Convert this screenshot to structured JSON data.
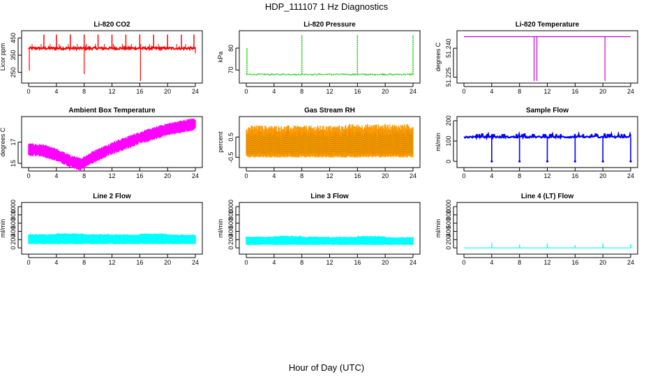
{
  "title": "HDP_111107  1 Hz Diagnostics",
  "xlabel": "Hour of Day (UTC)",
  "chart_data": [
    {
      "type": "line",
      "title": "Li-820 CO2",
      "ylabel": "Licor ppm",
      "color": "#ff0000",
      "x_ticks": [
        0,
        4,
        8,
        12,
        16,
        20,
        24
      ],
      "xlim": [
        0,
        24
      ],
      "ylim": [
        200,
        480
      ],
      "y_ticks": [
        250,
        350,
        450
      ],
      "baseline": 390,
      "spikes": [
        {
          "x": 2.2,
          "y": 470
        },
        {
          "x": 4.0,
          "y": 470
        },
        {
          "x": 6.0,
          "y": 470
        },
        {
          "x": 8.0,
          "y": 470
        },
        {
          "x": 10.0,
          "y": 470
        },
        {
          "x": 12.0,
          "y": 470
        },
        {
          "x": 14.0,
          "y": 470
        },
        {
          "x": 16.0,
          "y": 470
        },
        {
          "x": 18.0,
          "y": 470
        },
        {
          "x": 20.0,
          "y": 470
        },
        {
          "x": 22.0,
          "y": 470
        },
        {
          "x": 23.8,
          "y": 470
        }
      ],
      "dips": [
        {
          "x": 0.1,
          "y": 260
        },
        {
          "x": 8.0,
          "y": 240
        },
        {
          "x": 16.1,
          "y": 200
        },
        {
          "x": 24.0,
          "y": 360
        }
      ]
    },
    {
      "type": "line",
      "title": "Li-820 Pressure",
      "ylabel": "kPa",
      "color": "#00cc00",
      "x_ticks": [
        0,
        4,
        8,
        12,
        16,
        20,
        24
      ],
      "xlim": [
        0,
        24
      ],
      "ylim": [
        65,
        87
      ],
      "y_ticks": [
        70,
        80
      ],
      "baseline": 68,
      "spikes": [
        {
          "x": 0.1,
          "y": 80
        },
        {
          "x": 8.0,
          "y": 86
        },
        {
          "x": 16.0,
          "y": 86
        },
        {
          "x": 24.0,
          "y": 86
        }
      ]
    },
    {
      "type": "line",
      "title": "Li-820 Temperature",
      "ylabel": "degrees C",
      "color": "#cc00cc",
      "x_ticks": [
        0,
        4,
        8,
        12,
        16,
        20,
        24
      ],
      "xlim": [
        0,
        24
      ],
      "ylim": [
        51.223,
        51.248
      ],
      "y_ticks": [
        51.225,
        51.24
      ],
      "y_tick_labels": [
        "51.225",
        "51.240"
      ],
      "baseline": 51.246,
      "dips": [
        {
          "x": 10.1,
          "y": 51.223
        },
        {
          "x": 10.5,
          "y": 51.223
        },
        {
          "x": 20.3,
          "y": 51.223
        }
      ]
    },
    {
      "type": "line",
      "title": "Ambient Box Temperature",
      "ylabel": "degrees C",
      "color": "#ff00ff",
      "x_ticks": [
        0,
        4,
        8,
        12,
        16,
        20,
        24
      ],
      "xlim": [
        0,
        24
      ],
      "ylim": [
        14.8,
        19.2
      ],
      "y_ticks": [
        15,
        17
      ],
      "x": [
        0,
        2,
        4,
        6,
        7.5,
        9,
        12,
        16,
        20,
        24
      ],
      "y": [
        16.3,
        16.2,
        15.8,
        15.2,
        14.9,
        15.5,
        16.4,
        17.4,
        18.2,
        18.7
      ],
      "band": 0.55
    },
    {
      "type": "line",
      "title": "Gas Stream RH",
      "ylabel": "percent",
      "color": "#ff9900",
      "color2": "#666600",
      "x_ticks": [
        0,
        4,
        8,
        12,
        16,
        20,
        24
      ],
      "xlim": [
        0,
        24
      ],
      "ylim": [
        -0.9,
        1.4
      ],
      "y_ticks": [
        -0.5,
        0.5
      ],
      "band_low": -0.45,
      "band_high": 0.9
    },
    {
      "type": "line",
      "title": "Sample Flow",
      "ylabel": "ml/min",
      "color": "#0000ff",
      "x_ticks": [
        0,
        4,
        8,
        12,
        16,
        20,
        24
      ],
      "xlim": [
        0,
        24
      ],
      "ylim": [
        -20,
        210
      ],
      "y_ticks": [
        0,
        100,
        200
      ],
      "baseline": 120,
      "dips": [
        {
          "x": 4.0,
          "y": 0
        },
        {
          "x": 8.0,
          "y": 0
        },
        {
          "x": 12.0,
          "y": 0
        },
        {
          "x": 16.0,
          "y": 0
        },
        {
          "x": 20.0,
          "y": 0
        },
        {
          "x": 24.0,
          "y": 0
        }
      ]
    },
    {
      "type": "area",
      "title": "Line 2 Flow",
      "ylabel": "ml/min",
      "color": "#00ffff",
      "x_ticks": [
        0,
        4,
        8,
        12,
        16,
        20,
        24
      ],
      "xlim": [
        0,
        24
      ],
      "ylim": [
        -100,
        1050
      ],
      "y_ticks": [
        0,
        200,
        400,
        600,
        800,
        1000
      ],
      "band_low": 100,
      "band_high": 320
    },
    {
      "type": "area",
      "title": "Line 3 Flow",
      "ylabel": "ml/min",
      "color": "#00ffff",
      "x_ticks": [
        0,
        4,
        8,
        12,
        16,
        20,
        24
      ],
      "xlim": [
        0,
        24
      ],
      "ylim": [
        -100,
        1050
      ],
      "y_ticks": [
        0,
        200,
        400,
        600,
        800,
        1000
      ],
      "band_low": 80,
      "band_high": 260
    },
    {
      "type": "line",
      "title": "Line 4 (LT) Flow",
      "ylabel": "ml/min",
      "color": "#00ffff",
      "x_ticks": [
        0,
        4,
        8,
        12,
        16,
        20,
        24
      ],
      "xlim": [
        0,
        24
      ],
      "ylim": [
        -100,
        1050
      ],
      "y_ticks": [
        0,
        200,
        400,
        600,
        800,
        1000
      ],
      "baseline": 0,
      "spikes": [
        {
          "x": 4.0,
          "y": 120
        },
        {
          "x": 8.0,
          "y": 80
        },
        {
          "x": 12.0,
          "y": 110
        },
        {
          "x": 16.0,
          "y": 70
        },
        {
          "x": 20.0,
          "y": 110
        },
        {
          "x": 24.0,
          "y": 90
        }
      ]
    }
  ]
}
